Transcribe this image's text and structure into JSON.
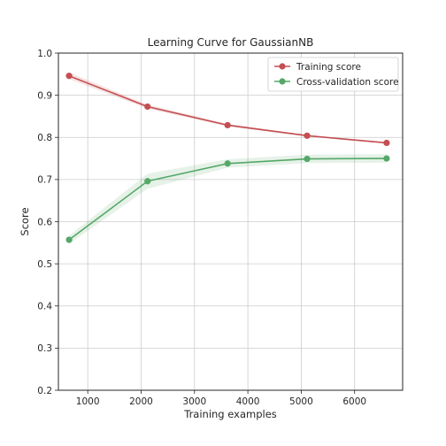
{
  "chart_data": {
    "type": "line",
    "title": "Learning Curve for GaussianNB",
    "xlabel": "Training examples",
    "ylabel": "Score",
    "xlim": [
      450,
      6900
    ],
    "ylim": [
      0.2,
      1.0
    ],
    "xticks": [
      1000,
      2000,
      3000,
      4000,
      5000,
      6000
    ],
    "yticks": [
      0.2,
      0.3,
      0.4,
      0.5,
      0.6,
      0.7,
      0.8,
      0.9,
      1.0
    ],
    "grid": true,
    "legend_position": "top-right",
    "x": [
      650,
      2120,
      3620,
      5110,
      6600
    ],
    "series": [
      {
        "name": "Training score",
        "color": "#c44e52",
        "values": [
          0.946,
          0.873,
          0.829,
          0.804,
          0.787
        ],
        "lower": [
          0.938,
          0.868,
          0.826,
          0.802,
          0.785
        ],
        "upper": [
          0.954,
          0.878,
          0.832,
          0.806,
          0.789
        ]
      },
      {
        "name": "Cross-validation score",
        "color": "#55a868",
        "values": [
          0.557,
          0.696,
          0.738,
          0.749,
          0.75
        ],
        "lower": [
          0.547,
          0.678,
          0.728,
          0.739,
          0.74
        ],
        "upper": [
          0.567,
          0.714,
          0.748,
          0.759,
          0.76
        ]
      }
    ]
  }
}
